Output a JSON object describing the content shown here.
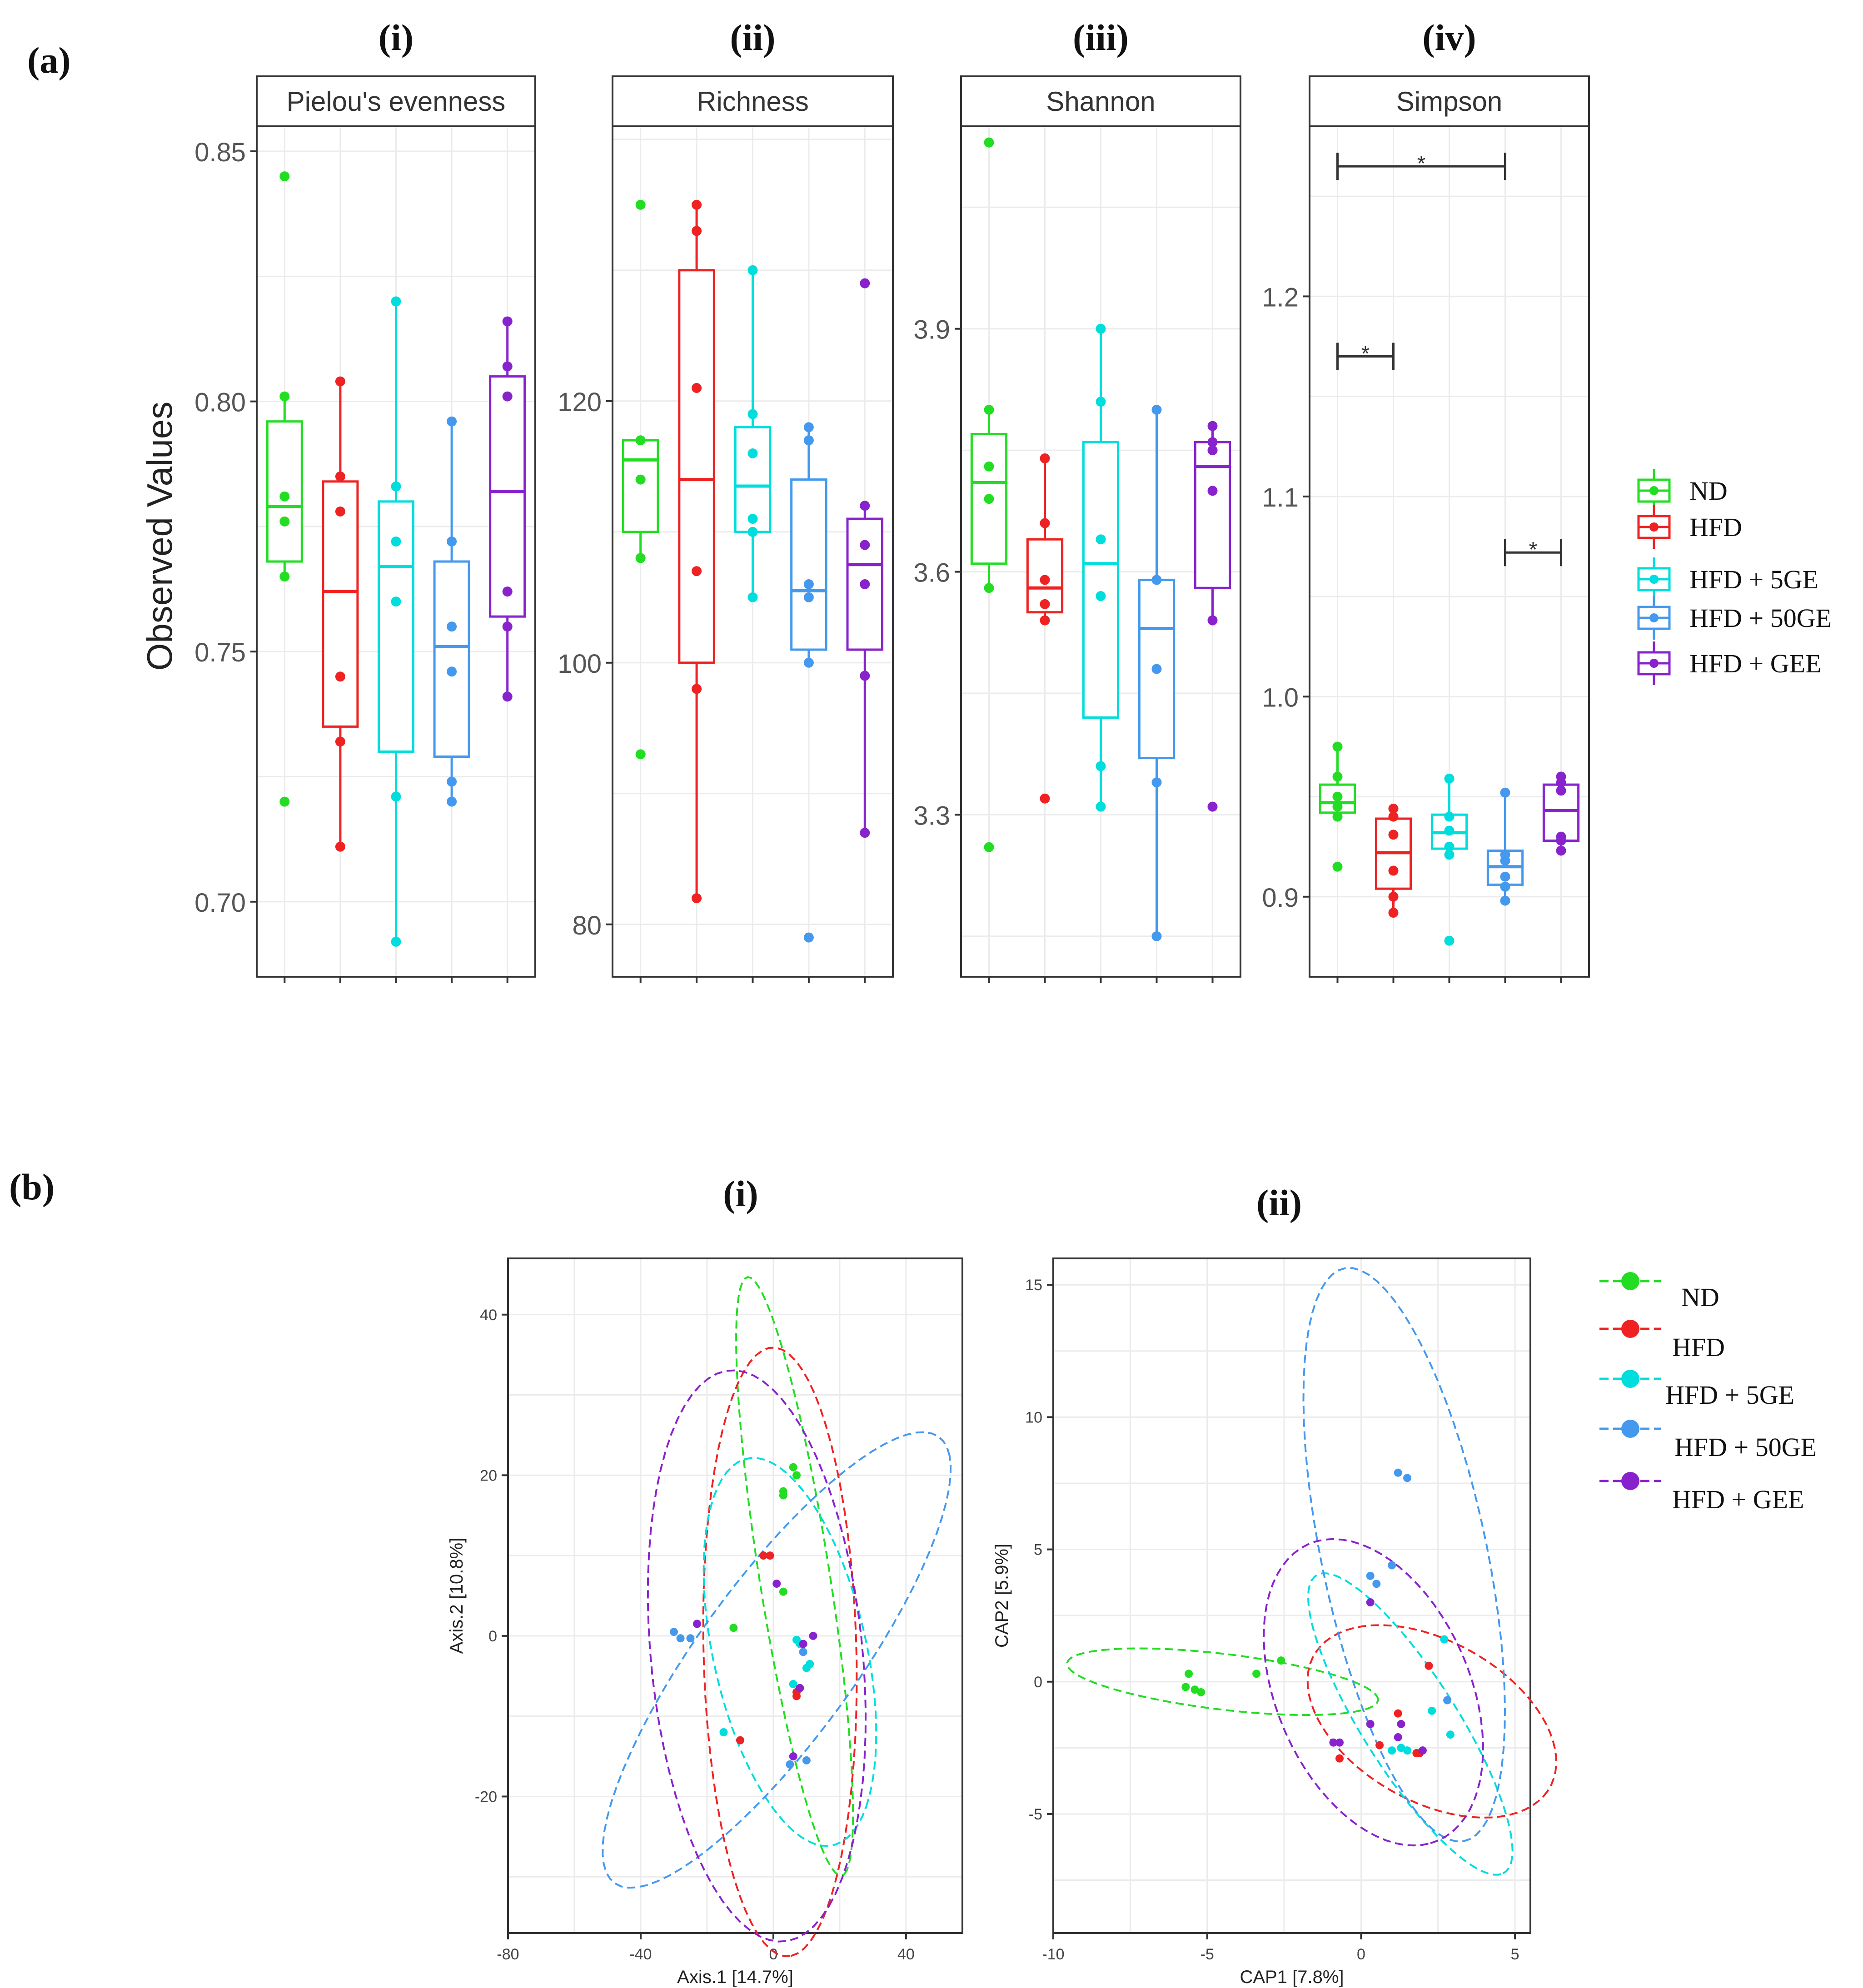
{
  "figure_labels": {
    "a": "(a)",
    "b": "(b)"
  },
  "group_names": [
    "ND",
    "HFD",
    "HFD + 5GE",
    "HFD + 50GE",
    "HFD + GEE"
  ],
  "group_colors": [
    "#22dd22",
    "#ee2222",
    "#00dddd",
    "#4499ee",
    "#8822cc"
  ],
  "legend": {
    "items": [
      "ND",
      "HFD",
      "HFD + 5GE",
      "HFD + 50GE",
      "HFD + GEE"
    ]
  },
  "chart_data": [
    {
      "type": "box",
      "roman": "(i)",
      "title": "Pielou's evenness",
      "ylabel": "Observed Values",
      "ylim": [
        0.685,
        0.855
      ],
      "yticks": [
        0.7,
        0.75,
        0.8,
        0.85
      ],
      "yticklabels": [
        "0.70",
        "0.75",
        "0.80",
        "0.85"
      ],
      "boxes": [
        {
          "group": "ND",
          "q1": 0.768,
          "median": 0.779,
          "q3": 0.796,
          "whisker_low": 0.765,
          "whisker_high": 0.801,
          "points": [
            0.845,
            0.801,
            0.781,
            0.776,
            0.765,
            0.72
          ]
        },
        {
          "group": "HFD",
          "q1": 0.735,
          "median": 0.762,
          "q3": 0.784,
          "whisker_low": 0.711,
          "whisker_high": 0.804,
          "points": [
            0.804,
            0.785,
            0.778,
            0.745,
            0.732,
            0.711
          ]
        },
        {
          "group": "HFD + 5GE",
          "q1": 0.73,
          "median": 0.767,
          "q3": 0.78,
          "whisker_low": 0.692,
          "whisker_high": 0.82,
          "points": [
            0.82,
            0.783,
            0.772,
            0.76,
            0.721,
            0.692
          ]
        },
        {
          "group": "HFD + 50GE",
          "q1": 0.729,
          "median": 0.751,
          "q3": 0.768,
          "whisker_low": 0.72,
          "whisker_high": 0.796,
          "points": [
            0.796,
            0.772,
            0.755,
            0.746,
            0.724,
            0.72
          ]
        },
        {
          "group": "HFD + GEE",
          "q1": 0.757,
          "median": 0.782,
          "q3": 0.805,
          "whisker_low": 0.741,
          "whisker_high": 0.816,
          "points": [
            0.816,
            0.807,
            0.801,
            0.762,
            0.755,
            0.741
          ]
        }
      ],
      "significance": []
    },
    {
      "type": "box",
      "roman": "(ii)",
      "title": "Richness",
      "ylim": [
        76,
        141
      ],
      "yticks": [
        80,
        100,
        120
      ],
      "yticklabels": [
        "80",
        "100",
        "120"
      ],
      "boxes": [
        {
          "group": "ND",
          "q1": 110,
          "median": 115.5,
          "q3": 117,
          "whisker_low": 108,
          "whisker_high": 117,
          "points": [
            135,
            117,
            114,
            108,
            93
          ]
        },
        {
          "group": "HFD",
          "q1": 100,
          "median": 114,
          "q3": 130,
          "whisker_low": 82,
          "whisker_high": 135,
          "points": [
            135,
            133,
            121,
            107,
            98,
            82
          ]
        },
        {
          "group": "HFD + 5GE",
          "q1": 110,
          "median": 113.5,
          "q3": 118,
          "whisker_low": 105,
          "whisker_high": 130,
          "points": [
            130,
            119,
            116,
            111,
            110,
            105
          ]
        },
        {
          "group": "HFD + 50GE",
          "q1": 101,
          "median": 105.5,
          "q3": 114,
          "whisker_low": 100,
          "whisker_high": 118,
          "points": [
            118,
            117,
            106,
            105,
            100,
            79
          ]
        },
        {
          "group": "HFD + GEE",
          "q1": 101,
          "median": 107.5,
          "q3": 111,
          "whisker_low": 87,
          "whisker_high": 112,
          "points": [
            129,
            112,
            109,
            106,
            99,
            87
          ]
        }
      ],
      "significance": []
    },
    {
      "type": "box",
      "roman": "(iii)",
      "title": "Shannon",
      "ylim": [
        3.1,
        4.15
      ],
      "yticks": [
        3.3,
        3.6,
        3.9
      ],
      "yticklabels": [
        "3.3",
        "3.6",
        "3.9"
      ],
      "boxes": [
        {
          "group": "ND",
          "q1": 3.61,
          "median": 3.71,
          "q3": 3.77,
          "whisker_low": 3.58,
          "whisker_high": 3.8,
          "points": [
            4.13,
            3.8,
            3.73,
            3.69,
            3.58,
            3.26
          ]
        },
        {
          "group": "HFD",
          "q1": 3.55,
          "median": 3.58,
          "q3": 3.64,
          "whisker_low": 3.54,
          "whisker_high": 3.74,
          "points": [
            3.74,
            3.66,
            3.59,
            3.56,
            3.54,
            3.32
          ]
        },
        {
          "group": "HFD + 5GE",
          "q1": 3.42,
          "median": 3.61,
          "q3": 3.76,
          "whisker_low": 3.31,
          "whisker_high": 3.9,
          "points": [
            3.9,
            3.81,
            3.64,
            3.57,
            3.36,
            3.31
          ]
        },
        {
          "group": "HFD + 50GE",
          "q1": 3.37,
          "median": 3.53,
          "q3": 3.59,
          "whisker_low": 3.15,
          "whisker_high": 3.8,
          "points": [
            3.8,
            3.59,
            3.48,
            3.34,
            3.15
          ]
        },
        {
          "group": "HFD + GEE",
          "q1": 3.58,
          "median": 3.73,
          "q3": 3.76,
          "whisker_low": 3.54,
          "whisker_high": 3.78,
          "points": [
            3.78,
            3.76,
            3.75,
            3.7,
            3.54,
            3.31
          ]
        }
      ],
      "significance": []
    },
    {
      "type": "box",
      "roman": "(iv)",
      "title": "Simpson",
      "ylim": [
        0.86,
        1.285
      ],
      "yticks": [
        0.9,
        1.0,
        1.1,
        1.2
      ],
      "yticklabels": [
        "0.9",
        "1.0",
        "1.1",
        "1.2"
      ],
      "boxes": [
        {
          "group": "ND",
          "q1": 0.942,
          "median": 0.947,
          "q3": 0.956,
          "whisker_low": 0.94,
          "whisker_high": 0.975,
          "points": [
            0.975,
            0.96,
            0.95,
            0.945,
            0.94,
            0.915
          ]
        },
        {
          "group": "HFD",
          "q1": 0.904,
          "median": 0.922,
          "q3": 0.939,
          "whisker_low": 0.892,
          "whisker_high": 0.944,
          "points": [
            0.944,
            0.94,
            0.931,
            0.913,
            0.9,
            0.892
          ]
        },
        {
          "group": "HFD + 5GE",
          "q1": 0.924,
          "median": 0.932,
          "q3": 0.941,
          "whisker_low": 0.921,
          "whisker_high": 0.959,
          "points": [
            0.959,
            0.94,
            0.933,
            0.925,
            0.921,
            0.878
          ]
        },
        {
          "group": "HFD + 50GE",
          "q1": 0.906,
          "median": 0.915,
          "q3": 0.923,
          "whisker_low": 0.898,
          "whisker_high": 0.952,
          "points": [
            0.952,
            0.921,
            0.918,
            0.91,
            0.905,
            0.898
          ]
        },
        {
          "group": "HFD + GEE",
          "q1": 0.928,
          "median": 0.943,
          "q3": 0.956,
          "whisker_low": 0.923,
          "whisker_high": 0.96,
          "points": [
            0.96,
            0.957,
            0.953,
            0.93,
            0.928,
            0.923
          ]
        }
      ],
      "significance": [
        {
          "from": 0,
          "to": 3,
          "y": 1.265,
          "label": "*"
        },
        {
          "from": 0,
          "to": 1,
          "y": 1.17,
          "label": "*"
        },
        {
          "from": 3,
          "to": 4,
          "y": 1.072,
          "label": "*"
        }
      ]
    },
    {
      "type": "scatter",
      "roman": "(i)",
      "xlabel": "Axis.1   [14.7%]",
      "ylabel": "Axis.2   [10.8%]",
      "xlim": [
        -80,
        57
      ],
      "ylim": [
        -37,
        47
      ],
      "xticks": [
        -80,
        -40,
        0,
        40
      ],
      "xticklabels": [
        "-80",
        "-40",
        "0",
        "40"
      ],
      "yticks": [
        -20,
        0,
        20,
        40
      ],
      "yticklabels": [
        "-20",
        "0",
        "20",
        "40"
      ],
      "ellipses": [
        {
          "group": "ND",
          "cx": 6.4,
          "cy": 7.4,
          "rx": 40.0,
          "ry": 10.0,
          "angle_deg": -68
        },
        {
          "group": "HFD",
          "cx": 2.0,
          "cy": -2.0,
          "rx": 38.0,
          "ry": 23.0,
          "angle_deg": -85
        },
        {
          "group": "HFD + 5GE",
          "cx": 5.0,
          "cy": -2.0,
          "rx": 30.0,
          "ry": 19.0,
          "angle_deg": -40
        },
        {
          "group": "HFD + 50GE",
          "cx": 1.0,
          "cy": -3.0,
          "rx": 58.0,
          "ry": 14.0,
          "angle_deg": 26
        },
        {
          "group": "HFD + GEE",
          "cx": -5.0,
          "cy": -2.5,
          "rx": 38.0,
          "ry": 30.0,
          "angle_deg": -55
        }
      ],
      "points": [
        {
          "group": "ND",
          "x": 6,
          "y": 21
        },
        {
          "group": "ND",
          "x": 7,
          "y": 20
        },
        {
          "group": "ND",
          "x": 3,
          "y": 18
        },
        {
          "group": "ND",
          "x": 3,
          "y": 17.5
        },
        {
          "group": "ND",
          "x": 3,
          "y": 5.5
        },
        {
          "group": "ND",
          "x": -12,
          "y": 1
        },
        {
          "group": "HFD",
          "x": -3,
          "y": 10
        },
        {
          "group": "HFD",
          "x": -1,
          "y": 10
        },
        {
          "group": "HFD",
          "x": 7,
          "y": -7
        },
        {
          "group": "HFD",
          "x": 7,
          "y": -7.5
        },
        {
          "group": "HFD",
          "x": -10,
          "y": -13
        },
        {
          "group": "HFD + 5GE",
          "x": -15,
          "y": -12
        },
        {
          "group": "HFD + 5GE",
          "x": 8,
          "y": -1
        },
        {
          "group": "HFD + 5GE",
          "x": 10,
          "y": -4
        },
        {
          "group": "HFD + 5GE",
          "x": 11,
          "y": -3.5
        },
        {
          "group": "HFD + 5GE",
          "x": 6,
          "y": -6
        },
        {
          "group": "HFD + 5GE",
          "x": 7,
          "y": -0.5
        },
        {
          "group": "HFD + 50GE",
          "x": -30,
          "y": 0.5
        },
        {
          "group": "HFD + 50GE",
          "x": -28,
          "y": -0.3
        },
        {
          "group": "HFD + 50GE",
          "x": -25,
          "y": -0.3
        },
        {
          "group": "HFD + 50GE",
          "x": 5,
          "y": -16
        },
        {
          "group": "HFD + 50GE",
          "x": 10,
          "y": -15.5
        },
        {
          "group": "HFD + 50GE",
          "x": 9,
          "y": -2
        },
        {
          "group": "HFD + GEE",
          "x": -23,
          "y": 1.5
        },
        {
          "group": "HFD + GEE",
          "x": 1,
          "y": 6.5
        },
        {
          "group": "HFD + GEE",
          "x": 6,
          "y": -15
        },
        {
          "group": "HFD + GEE",
          "x": 12,
          "y": 0
        },
        {
          "group": "HFD + GEE",
          "x": 9,
          "y": -1
        },
        {
          "group": "HFD + GEE",
          "x": 8,
          "y": -6.5
        }
      ]
    },
    {
      "type": "scatter",
      "roman": "(ii)",
      "xlabel": "CAP1   [7.8%]",
      "ylabel": "CAP2   [5.9%]",
      "xlim": [
        -10,
        5.5
      ],
      "ylim": [
        -9.5,
        16
      ],
      "xticks": [
        -10,
        -5,
        0,
        5
      ],
      "xticklabels": [
        "-10",
        "-5",
        "0",
        "5"
      ],
      "yticks": [
        -5,
        0,
        5,
        10,
        15
      ],
      "yticklabels": [
        "-5",
        "0",
        "5",
        "10",
        "15"
      ],
      "ellipses": [
        {
          "group": "ND",
          "cx": -4.5,
          "cy": 0.0,
          "rx": 5.1,
          "ry": 1.05,
          "angle_deg": -8
        },
        {
          "group": "HFD",
          "cx": 2.3,
          "cy": -1.5,
          "rx": 4.6,
          "ry": 2.9,
          "angle_deg": -38
        },
        {
          "group": "HFD + 5GE",
          "cx": 1.6,
          "cy": -1.6,
          "rx": 6.4,
          "ry": 1.6,
          "angle_deg": -62
        },
        {
          "group": "HFD + 50GE",
          "cx": 1.4,
          "cy": 4.8,
          "rx": 11.0,
          "ry": 2.7,
          "angle_deg": -80
        },
        {
          "group": "HFD + GEE",
          "cx": 0.4,
          "cy": -0.4,
          "rx": 6.0,
          "ry": 3.2,
          "angle_deg": -72
        }
      ],
      "points": [
        {
          "group": "ND",
          "x": -5.6,
          "y": 0.3
        },
        {
          "group": "ND",
          "x": -5.7,
          "y": -0.2
        },
        {
          "group": "ND",
          "x": -5.4,
          "y": -0.3
        },
        {
          "group": "ND",
          "x": -5.2,
          "y": -0.4
        },
        {
          "group": "ND",
          "x": -3.4,
          "y": 0.3
        },
        {
          "group": "ND",
          "x": -2.6,
          "y": 0.8
        },
        {
          "group": "HFD",
          "x": 2.2,
          "y": 0.6
        },
        {
          "group": "HFD",
          "x": 1.2,
          "y": -1.2
        },
        {
          "group": "HFD",
          "x": 0.6,
          "y": -2.4
        },
        {
          "group": "HFD",
          "x": -0.7,
          "y": -2.9
        },
        {
          "group": "HFD",
          "x": 1.8,
          "y": -2.7
        },
        {
          "group": "HFD",
          "x": 1.9,
          "y": -2.7
        },
        {
          "group": "HFD + 5GE",
          "x": 2.7,
          "y": 1.6
        },
        {
          "group": "HFD + 5GE",
          "x": 2.3,
          "y": -1.1
        },
        {
          "group": "HFD + 5GE",
          "x": 2.9,
          "y": -2.0
        },
        {
          "group": "HFD + 5GE",
          "x": 1.0,
          "y": -2.6
        },
        {
          "group": "HFD + 5GE",
          "x": 1.3,
          "y": -2.5
        },
        {
          "group": "HFD + 5GE",
          "x": 1.5,
          "y": -2.6
        },
        {
          "group": "HFD + 50GE",
          "x": 1.2,
          "y": 7.9
        },
        {
          "group": "HFD + 50GE",
          "x": 1.5,
          "y": 7.7
        },
        {
          "group": "HFD + 50GE",
          "x": 0.3,
          "y": 4.0
        },
        {
          "group": "HFD + 50GE",
          "x": 0.5,
          "y": 3.7
        },
        {
          "group": "HFD + 50GE",
          "x": 1.0,
          "y": 4.4
        },
        {
          "group": "HFD + 50GE",
          "x": 2.8,
          "y": -0.7
        },
        {
          "group": "HFD + GEE",
          "x": 0.3,
          "y": 3.0
        },
        {
          "group": "HFD + GEE",
          "x": -0.7,
          "y": -2.3
        },
        {
          "group": "HFD + GEE",
          "x": -0.9,
          "y": -2.3
        },
        {
          "group": "HFD + GEE",
          "x": 0.3,
          "y": -1.6
        },
        {
          "group": "HFD + GEE",
          "x": 1.3,
          "y": -1.6
        },
        {
          "group": "HFD + GEE",
          "x": 1.2,
          "y": -2.1
        },
        {
          "group": "HFD + GEE",
          "x": 2.0,
          "y": -2.6
        }
      ]
    }
  ]
}
